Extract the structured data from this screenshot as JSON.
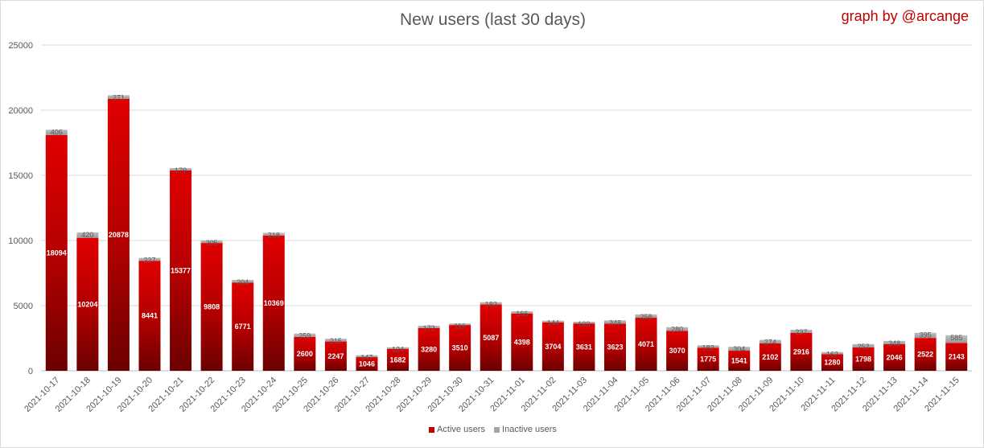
{
  "chart_data": {
    "type": "bar",
    "stacked": true,
    "title": "New users (last 30 days)",
    "credit": "graph by @arcange",
    "categories": [
      "2021-10-17",
      "2021-10-18",
      "2021-10-19",
      "2021-10-20",
      "2021-10-21",
      "2021-10-22",
      "2021-10-23",
      "2021-10-24",
      "2021-10-25",
      "2021-10-26",
      "2021-10-27",
      "2021-10-28",
      "2021-10-29",
      "2021-10-30",
      "2021-10-31",
      "2021-11-01",
      "2021-11-02",
      "2021-11-03",
      "2021-11-04",
      "2021-11-05",
      "2021-11-06",
      "2021-11-07",
      "2021-11-08",
      "2021-11-09",
      "2021-11-10",
      "2021-11-11",
      "2021-11-12",
      "2021-11-13",
      "2021-11-14",
      "2021-11-15"
    ],
    "series": [
      {
        "name": "Active users",
        "color": "#c00000",
        "values": [
          18094,
          10204,
          20878,
          8441,
          15377,
          9808,
          6771,
          10369,
          2600,
          2247,
          1046,
          1682,
          3280,
          3510,
          5087,
          4398,
          3704,
          3631,
          3623,
          4071,
          3070,
          1775,
          1541,
          2102,
          2916,
          1280,
          1798,
          2046,
          2522,
          2143
        ]
      },
      {
        "name": "Inactive users",
        "color": "#a6a6a6",
        "values": [
          406,
          420,
          271,
          227,
          179,
          205,
          204,
          218,
          259,
          215,
          147,
          124,
          172,
          116,
          182,
          166,
          144,
          133,
          248,
          258,
          280,
          182,
          304,
          274,
          237,
          162,
          252,
          248,
          395,
          585
        ]
      }
    ],
    "ylim": [
      0,
      25000
    ],
    "yticks": [
      0,
      5000,
      10000,
      15000,
      20000,
      25000
    ],
    "grid": true,
    "legend": "bottom-center"
  }
}
